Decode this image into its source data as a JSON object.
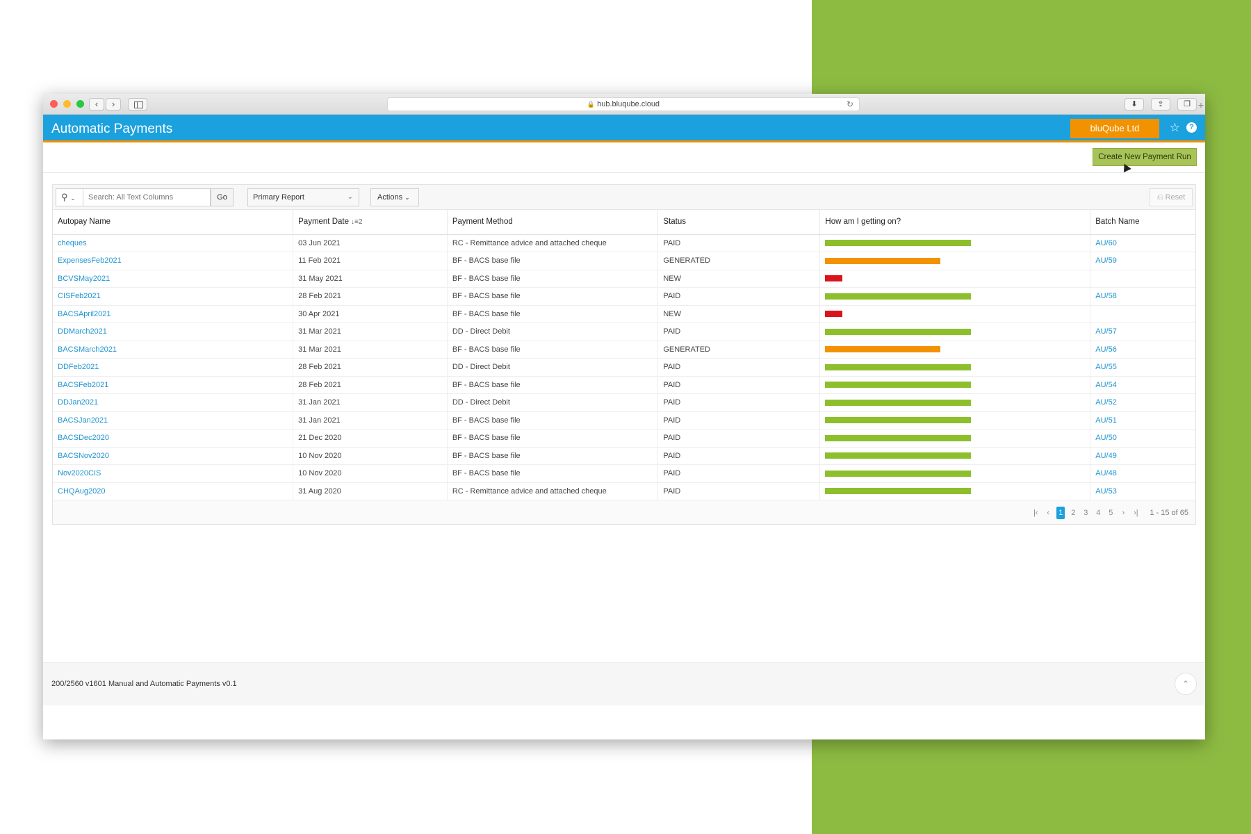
{
  "browser": {
    "url": "hub.bluqube.cloud"
  },
  "header": {
    "title": "Automatic Payments",
    "company": "bluQube Ltd"
  },
  "toolbar": {
    "create_label": "Create New Payment Run"
  },
  "search": {
    "placeholder": "Search: All Text Columns",
    "go_label": "Go",
    "report_label": "Primary Report",
    "actions_label": "Actions",
    "reset_label": "Reset"
  },
  "table": {
    "columns": [
      "Autopay Name",
      "Payment Date",
      "Payment Method",
      "Status",
      "How am I getting on?",
      "Batch Name"
    ],
    "sort_indicator": "2",
    "rows": [
      {
        "name": "cheques",
        "date": "03 Jun 2021",
        "method": "RC - Remittance advice and attached cheque",
        "status": "PAID",
        "progress": 1.0,
        "batch": "AU/60"
      },
      {
        "name": "ExpensesFeb2021",
        "date": "11 Feb 2021",
        "method": "BF - BACS base file",
        "status": "GENERATED",
        "progress": 0.79,
        "batch": "AU/59"
      },
      {
        "name": "BCVSMay2021",
        "date": "31 May 2021",
        "method": "BF - BACS base file",
        "status": "NEW",
        "progress": 0.12,
        "batch": ""
      },
      {
        "name": "CISFeb2021",
        "date": "28 Feb 2021",
        "method": "BF - BACS base file",
        "status": "PAID",
        "progress": 1.0,
        "batch": "AU/58"
      },
      {
        "name": "BACSApril2021",
        "date": "30 Apr 2021",
        "method": "BF - BACS base file",
        "status": "NEW",
        "progress": 0.12,
        "batch": ""
      },
      {
        "name": "DDMarch2021",
        "date": "31 Mar 2021",
        "method": "DD - Direct Debit",
        "status": "PAID",
        "progress": 1.0,
        "batch": "AU/57"
      },
      {
        "name": "BACSMarch2021",
        "date": "31 Mar 2021",
        "method": "BF - BACS base file",
        "status": "GENERATED",
        "progress": 0.79,
        "batch": "AU/56"
      },
      {
        "name": "DDFeb2021",
        "date": "28 Feb 2021",
        "method": "DD - Direct Debit",
        "status": "PAID",
        "progress": 1.0,
        "batch": "AU/55"
      },
      {
        "name": "BACSFeb2021",
        "date": "28 Feb 2021",
        "method": "BF - BACS base file",
        "status": "PAID",
        "progress": 1.0,
        "batch": "AU/54"
      },
      {
        "name": "DDJan2021",
        "date": "31 Jan 2021",
        "method": "DD - Direct Debit",
        "status": "PAID",
        "progress": 1.0,
        "batch": "AU/52"
      },
      {
        "name": "BACSJan2021",
        "date": "31 Jan 2021",
        "method": "BF - BACS base file",
        "status": "PAID",
        "progress": 1.0,
        "batch": "AU/51"
      },
      {
        "name": "BACSDec2020",
        "date": "21 Dec 2020",
        "method": "BF - BACS base file",
        "status": "PAID",
        "progress": 1.0,
        "batch": "AU/50"
      },
      {
        "name": "BACSNov2020",
        "date": "10 Nov 2020",
        "method": "BF - BACS base file",
        "status": "PAID",
        "progress": 1.0,
        "batch": "AU/49"
      },
      {
        "name": "Nov2020CIS",
        "date": "10 Nov 2020",
        "method": "BF - BACS base file",
        "status": "PAID",
        "progress": 1.0,
        "batch": "AU/48"
      },
      {
        "name": "CHQAug2020",
        "date": "31 Aug 2020",
        "method": "RC - Remittance advice and attached cheque",
        "status": "PAID",
        "progress": 1.0,
        "batch": "AU/53"
      }
    ]
  },
  "status_colors": {
    "PAID": "#8dbf2c",
    "GENERATED": "#f39200",
    "NEW": "#d9141c"
  },
  "pagination": {
    "pages": [
      "1",
      "2",
      "3",
      "4",
      "5"
    ],
    "current": "1",
    "range": "1 - 15 of 65"
  },
  "footer": {
    "text": "200/2560 v1601 Manual and Automatic Payments v0.1"
  }
}
